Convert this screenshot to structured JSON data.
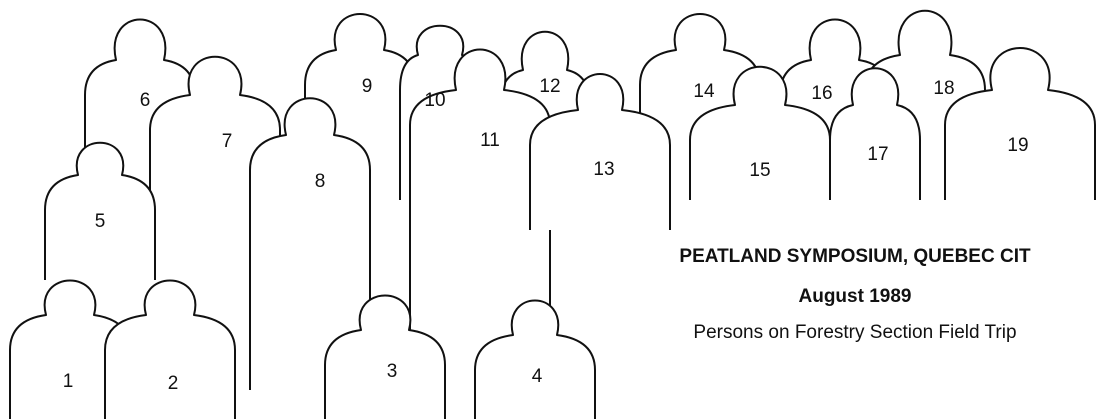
{
  "people": [
    {
      "label": "1"
    },
    {
      "label": "2"
    },
    {
      "label": "3"
    },
    {
      "label": "4"
    },
    {
      "label": "5"
    },
    {
      "label": "6"
    },
    {
      "label": "7"
    },
    {
      "label": "8"
    },
    {
      "label": "9"
    },
    {
      "label": "10"
    },
    {
      "label": "11"
    },
    {
      "label": "12"
    },
    {
      "label": "13"
    },
    {
      "label": "14"
    },
    {
      "label": "15"
    },
    {
      "label": "16"
    },
    {
      "label": "17"
    },
    {
      "label": "18"
    },
    {
      "label": "19"
    }
  ],
  "caption": {
    "title": "PEATLAND SYMPOSIUM, QUEBEC CIT",
    "date": "August 1989",
    "subtitle": "Persons on Forestry Section Field Trip"
  }
}
